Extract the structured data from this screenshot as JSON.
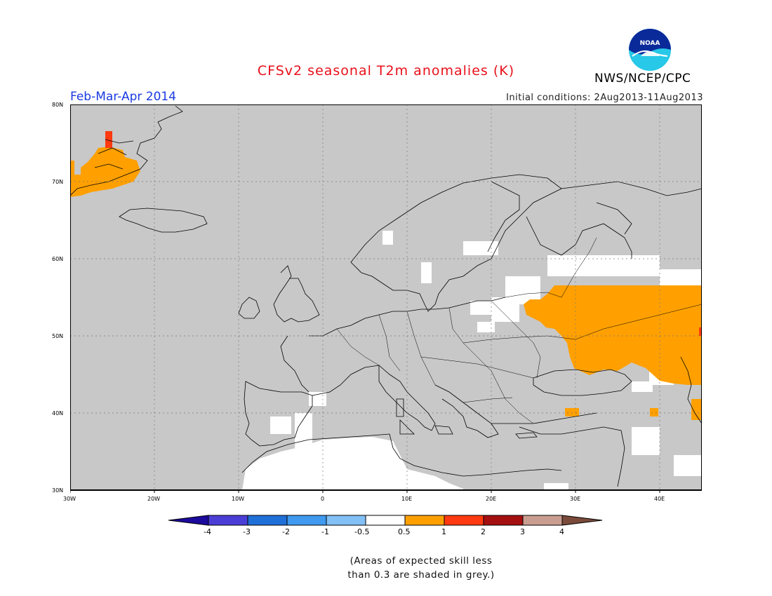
{
  "header": {
    "title": "CFSv2 seasonal T2m anomalies (K)",
    "period": "Feb-Mar-Apr 2014",
    "initial_conditions": "Initial conditions: 2Aug2013-11Aug2013",
    "agency": "NWS/NCEP/CPC",
    "logo_text": "NOAA"
  },
  "map": {
    "lat_labels": [
      "80N",
      "70N",
      "60N",
      "50N",
      "40N",
      "30N"
    ],
    "lon_labels": [
      "30W",
      "20W",
      "10W",
      "0",
      "10E",
      "20E",
      "30E",
      "40E"
    ],
    "lat_range": [
      30,
      80
    ],
    "lon_range": [
      -30,
      45
    ],
    "background_grey": "#c8c8c8",
    "anomaly_orange": "#ffa000",
    "anomaly_red": "#ff3a10"
  },
  "colorbar": {
    "labels": [
      "-4",
      "-3",
      "-2",
      "-1",
      "-0.5",
      "0.5",
      "1",
      "2",
      "3",
      "4"
    ],
    "colors": [
      "#1c0a9c",
      "#4a3ed6",
      "#1f6fd8",
      "#3f9af0",
      "#82c0f6",
      "#ffffff",
      "#ffa000",
      "#ff3a10",
      "#a50f0f",
      "#c99e91",
      "#7a4a3a"
    ]
  },
  "caption": {
    "line1": "(Areas of expected skill less",
    "line2": "than 0.3 are shaded in grey.)"
  }
}
